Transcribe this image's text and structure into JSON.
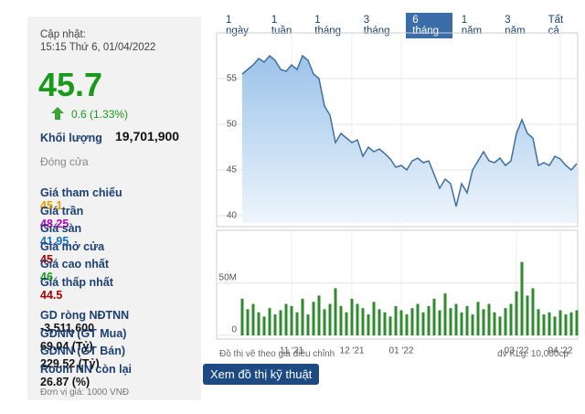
{
  "panel": {
    "updated_label": "Cập nhật:",
    "updated_time": "15:15 Thứ 6, 01/04/2022",
    "price": 45.7,
    "change": "0.6 (1.33%)",
    "volume_label": "Khối lượng",
    "volume": "19,701,900",
    "status": "Đóng cửa",
    "prices": [
      {
        "label": "Giá tham chiếu",
        "value": 45.1,
        "color": "#e8a000"
      },
      {
        "label": "Giá trần",
        "value": 48.25,
        "color": "#c000c0"
      },
      {
        "label": "Giá sàn",
        "value": 41.95,
        "color": "#1a6fc0"
      },
      {
        "label": "Giá mở cửa",
        "value": 45,
        "color": "#b00000"
      },
      {
        "label": "Giá cao nhất",
        "value": 46,
        "color": "#1a9a1a"
      },
      {
        "label": "Giá thấp nhất",
        "value": 44.5,
        "color": "#b00000"
      }
    ],
    "foreign": [
      {
        "label": "GD ròng NĐTNN",
        "value": "-3,511,600"
      },
      {
        "label": "GDNN (GT Mua)",
        "value": "69.04 (Tỷ)"
      },
      {
        "label": "GDNN (GT Bán)",
        "value": "229.52 (Tỷ)"
      },
      {
        "label": "Room NN còn lại",
        "value": "26.87 (%)"
      }
    ],
    "unit": "Đơn vị giá: 1000 VNĐ"
  },
  "tabs": [
    "1 ngày",
    "1 tuần",
    "1 tháng",
    "3 tháng",
    "6 tháng",
    "1 năm",
    "3 năm",
    "Tất cả"
  ],
  "active_tab": 4,
  "chart_data": [
    {
      "type": "area",
      "color": "#3f6f9c",
      "values": [
        55.5,
        56,
        56.5,
        57.2,
        56.8,
        57.5,
        57,
        56,
        55.8,
        56.5,
        56,
        57.5,
        57,
        55.5,
        55,
        52,
        51,
        48,
        49,
        48.5,
        48,
        48.3,
        46.5,
        47.5,
        47,
        47.3,
        46.8,
        46.2,
        45.3,
        45.5,
        45,
        46,
        46.3,
        45.8,
        46,
        44.5,
        43,
        44,
        43.5,
        41,
        43.5,
        42.5,
        45,
        46,
        47,
        46,
        45.8,
        46.3,
        45.5,
        46,
        49,
        50.5,
        49,
        48.5,
        45.5,
        45.8,
        45.5,
        46.5,
        46.2,
        45.5,
        45,
        45.7
      ],
      "xlim": [
        0,
        61
      ],
      "xticks": [
        {
          "value": 9,
          "label": "11 '21"
        },
        {
          "value": 20,
          "label": "12 '21"
        },
        {
          "value": 29,
          "label": "01 '22"
        },
        {
          "value": 50,
          "label": "03 '22"
        },
        {
          "value": 58,
          "label": "04 '22"
        }
      ],
      "ylim": [
        39.2,
        59.4
      ],
      "yticks": [
        40,
        45,
        50,
        55
      ],
      "grid": true
    },
    {
      "type": "bar",
      "color": "#2e8b2e",
      "values": [
        35000000,
        25000000,
        30000000,
        22000000,
        18000000,
        26000000,
        20000000,
        24000000,
        30000000,
        28000000,
        22000000,
        35000000,
        20000000,
        32000000,
        38000000,
        25000000,
        30000000,
        45000000,
        28000000,
        22000000,
        35000000,
        30000000,
        26000000,
        20000000,
        32000000,
        25000000,
        22000000,
        18000000,
        28000000,
        24000000,
        20000000,
        26000000,
        30000000,
        22000000,
        28000000,
        35000000,
        24000000,
        40000000,
        26000000,
        30000000,
        22000000,
        28000000,
        20000000,
        32000000,
        25000000,
        30000000,
        22000000,
        18000000,
        26000000,
        30000000,
        42000000,
        70000000,
        38000000,
        45000000,
        25000000,
        20000000,
        22000000,
        18000000,
        24000000,
        20000000,
        22000000,
        24000000
      ],
      "xlim": [
        0,
        61
      ],
      "xticks": [
        {
          "value": 9,
          "label": "11 '21"
        },
        {
          "value": 20,
          "label": "12 '21"
        },
        {
          "value": 29,
          "label": "01 '22"
        },
        {
          "value": 50,
          "label": "03 '22"
        },
        {
          "value": 58,
          "label": "04 '22"
        }
      ],
      "ylim": [
        0,
        95000000
      ],
      "yticks": [
        0,
        {
          "value": 50000000,
          "label": "50M"
        }
      ],
      "grid": true
    }
  ],
  "footer": {
    "note": "Đồ thị vẽ theo giá điều chỉnh",
    "unit": "đv KLg: 10,000cp"
  },
  "button": "Xem đồ thị kỹ thuật"
}
